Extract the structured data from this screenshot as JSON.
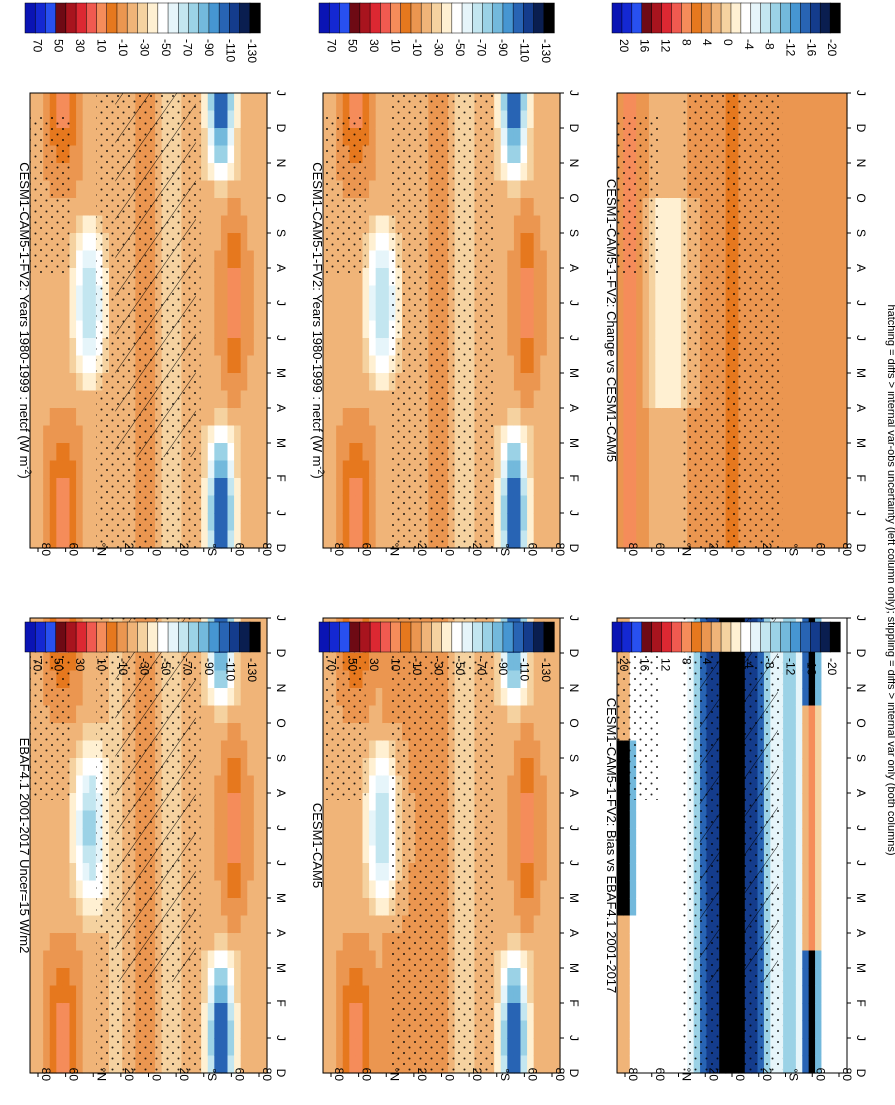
{
  "figure": {
    "footnote": "hatching = diffs > internal var-obs uncertainty (left column only); stippling = diffs > internal var only (both columns)"
  },
  "chart_data": [
    {
      "type": "heatmap",
      "id": "p1",
      "title": "CESM1-CAM5-1-FV2: Years 1980-1999 : netcf (W m",
      "title_sup": "-2",
      "title_end": ")",
      "x_ticks": [
        "D",
        "J",
        "F",
        "M",
        "A",
        "M",
        "J",
        "J",
        "A",
        "S",
        "O",
        "N",
        "D",
        "J"
      ],
      "y_ticks": [
        "80",
        "60",
        "°N",
        "20",
        "0",
        "20",
        "°S",
        "60",
        "80"
      ],
      "colorbar": {
        "labels": [
          "70",
          "50",
          "30",
          "10",
          "-10",
          "-30",
          "-50",
          "-70",
          "-90",
          "-110",
          "-130"
        ],
        "colors": [
          "#0a14b4",
          "#1428d2",
          "#2850f0",
          "#6e0a14",
          "#a8141e",
          "#dc2832",
          "#f05a50",
          "#f58c5a",
          "#e6781e",
          "#eb9650",
          "#f0b478",
          "#f5d2a0",
          "#fff0d2",
          "#ffffff",
          "#e6f5fa",
          "#c3e6f0",
          "#9bd2e6",
          "#73b9dc",
          "#4696d2",
          "#2864b4",
          "#143c8c",
          "#0a1e50",
          "#000000"
        ]
      },
      "field": "cesm_fv2",
      "hatch": true,
      "stipple": true
    },
    {
      "type": "heatmap",
      "id": "p2",
      "title": "CESM1-CAM5-1-FV2: Years 1980-1999 : netcf (W m",
      "title_sup": "-2",
      "title_end": ")",
      "x_ticks": [
        "D",
        "J",
        "F",
        "M",
        "A",
        "M",
        "J",
        "J",
        "A",
        "S",
        "O",
        "N",
        "D",
        "J"
      ],
      "y_ticks": [
        "80",
        "60",
        "°N",
        "20",
        "0",
        "20",
        "°S",
        "60",
        "80"
      ],
      "colorbar": {
        "labels": [
          "70",
          "50",
          "30",
          "10",
          "-10",
          "-30",
          "-50",
          "-70",
          "-90",
          "-110",
          "-130"
        ],
        "colors": [
          "#0a14b4",
          "#1428d2",
          "#2850f0",
          "#6e0a14",
          "#a8141e",
          "#dc2832",
          "#f05a50",
          "#f58c5a",
          "#e6781e",
          "#eb9650",
          "#f0b478",
          "#f5d2a0",
          "#fff0d2",
          "#ffffff",
          "#e6f5fa",
          "#c3e6f0",
          "#9bd2e6",
          "#73b9dc",
          "#4696d2",
          "#2864b4",
          "#143c8c",
          "#0a1e50",
          "#000000"
        ]
      },
      "field": "cesm_fv2",
      "hatch": false,
      "stipple": true
    },
    {
      "type": "heatmap",
      "id": "p3",
      "title": "EBAF4.1 2001-2017 Uncer=15 W/m2",
      "title_sup": "",
      "title_end": "",
      "x_ticks": [
        "D",
        "J",
        "F",
        "M",
        "A",
        "M",
        "J",
        "J",
        "A",
        "S",
        "O",
        "N",
        "D",
        "J"
      ],
      "y_ticks": [
        "80",
        "60",
        "°N",
        "20",
        "0",
        "20",
        "°S",
        "60",
        "80"
      ],
      "colorbar": {
        "labels": [
          "70",
          "50",
          "30",
          "10",
          "-10",
          "-30",
          "-50",
          "-70",
          "-90",
          "-110",
          "-130"
        ],
        "colors": [
          "#0a14b4",
          "#1428d2",
          "#2850f0",
          "#6e0a14",
          "#a8141e",
          "#dc2832",
          "#f05a50",
          "#f58c5a",
          "#e6781e",
          "#eb9650",
          "#f0b478",
          "#f5d2a0",
          "#fff0d2",
          "#ffffff",
          "#e6f5fa",
          "#c3e6f0",
          "#9bd2e6",
          "#73b9dc",
          "#4696d2",
          "#2864b4",
          "#143c8c",
          "#0a1e50",
          "#000000"
        ]
      },
      "field": "ebaf",
      "hatch": true,
      "stipple": true
    },
    {
      "type": "heatmap",
      "id": "p4",
      "title": "CESM1-CAM5",
      "title_sup": "",
      "title_end": "",
      "x_ticks": [
        "D",
        "J",
        "F",
        "M",
        "A",
        "M",
        "J",
        "J",
        "A",
        "S",
        "O",
        "N",
        "D",
        "J"
      ],
      "y_ticks": [
        "80",
        "60",
        "°N",
        "20",
        "0",
        "20",
        "°S",
        "60",
        "80"
      ],
      "colorbar": {
        "labels": [
          "70",
          "50",
          "30",
          "10",
          "-10",
          "-30",
          "-50",
          "-70",
          "-90",
          "-110",
          "-130"
        ],
        "colors": [
          "#0a14b4",
          "#1428d2",
          "#2850f0",
          "#6e0a14",
          "#a8141e",
          "#dc2832",
          "#f05a50",
          "#f58c5a",
          "#e6781e",
          "#eb9650",
          "#f0b478",
          "#f5d2a0",
          "#fff0d2",
          "#ffffff",
          "#e6f5fa",
          "#c3e6f0",
          "#9bd2e6",
          "#73b9dc",
          "#4696d2",
          "#2864b4",
          "#143c8c",
          "#0a1e50",
          "#000000"
        ]
      },
      "field": "cesm_cam5",
      "hatch": false,
      "stipple": true
    },
    {
      "type": "heatmap",
      "id": "p5",
      "title": "CESM1-CAM5-1-FV2: Bias vs EBAF4.1 2001-2017",
      "title_sup": "",
      "title_end": "",
      "x_ticks": [
        "D",
        "J",
        "F",
        "M",
        "A",
        "M",
        "J",
        "J",
        "A",
        "S",
        "O",
        "N",
        "D",
        "J"
      ],
      "y_ticks": [
        "80",
        "60",
        "°N",
        "20",
        "0",
        "20",
        "°S",
        "60",
        "80"
      ],
      "colorbar": {
        "labels": [
          "20",
          "16",
          "12",
          "8",
          "4",
          "0",
          "-4",
          "-8",
          "-12",
          "-16",
          "-20"
        ],
        "colors": [
          "#0a14b4",
          "#1428d2",
          "#2850f0",
          "#6e0a14",
          "#a8141e",
          "#dc2832",
          "#f05a50",
          "#f58c5a",
          "#e6781e",
          "#eb9650",
          "#f0b478",
          "#f5d2a0",
          "#fff0d2",
          "#ffffff",
          "#e6f5fa",
          "#c3e6f0",
          "#9bd2e6",
          "#73b9dc",
          "#4696d2",
          "#2864b4",
          "#143c8c",
          "#0a1e50",
          "#000000"
        ]
      },
      "field": "bias",
      "hatch": true,
      "stipple": true
    },
    {
      "type": "heatmap",
      "id": "p6",
      "title": "CESM1-CAM5-1-FV2: Change vs CESM1-CAM5",
      "title_sup": "",
      "title_end": "",
      "x_ticks": [
        "D",
        "J",
        "F",
        "M",
        "A",
        "M",
        "J",
        "J",
        "A",
        "S",
        "O",
        "N",
        "D",
        "J"
      ],
      "y_ticks": [
        "80",
        "60",
        "°N",
        "20",
        "0",
        "20",
        "°S",
        "60",
        "80"
      ],
      "colorbar": {
        "labels": [
          "20",
          "16",
          "12",
          "8",
          "4",
          "0",
          "-4",
          "-8",
          "-12",
          "-16",
          "-20"
        ],
        "colors": [
          "#0a14b4",
          "#1428d2",
          "#2850f0",
          "#6e0a14",
          "#a8141e",
          "#dc2832",
          "#f05a50",
          "#f58c5a",
          "#e6781e",
          "#eb9650",
          "#f0b478",
          "#f5d2a0",
          "#fff0d2",
          "#ffffff",
          "#e6f5fa",
          "#c3e6f0",
          "#9bd2e6",
          "#73b9dc",
          "#4696d2",
          "#2864b4",
          "#143c8c",
          "#0a1e50",
          "#000000"
        ]
      },
      "field": "change",
      "hatch": false,
      "stipple": true
    }
  ]
}
